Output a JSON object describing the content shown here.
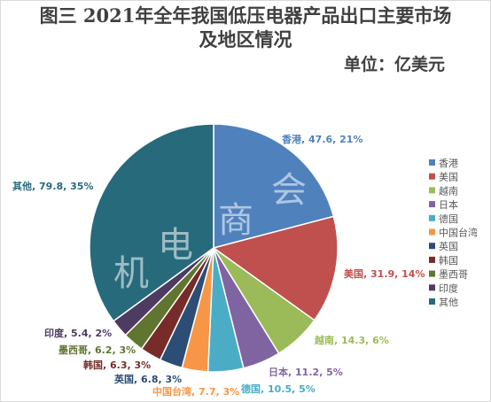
{
  "title_line1": "图三 2021年全年我国低压电器产品出口主要市场",
  "title_line2": "及地区情况",
  "unit": "单位：亿美元",
  "watermark": [
    "机",
    "电",
    "商",
    "会"
  ],
  "chart_data": {
    "type": "pie",
    "categories": [
      "香港",
      "美国",
      "越南",
      "日本",
      "德国",
      "中国台湾",
      "英国",
      "韩国",
      "墨西哥",
      "印度",
      "其他"
    ],
    "values": [
      47.6,
      31.9,
      14.3,
      11.2,
      10.5,
      7.7,
      6.8,
      6.3,
      6.2,
      5.4,
      79.8
    ],
    "percents": [
      "21%",
      "14%",
      "6%",
      "5%",
      "5%",
      "3%",
      "3%",
      "3%",
      "3%",
      "2%",
      "35%"
    ],
    "data_labels": [
      "香港, 47.6, 21%",
      "美国, 31.9, 14%",
      "越南, 14.3, 6%",
      "日本, 11.2, 5%",
      "德国, 10.5, 5%",
      "中国台湾, 7.7, 3%",
      "英国, 6.8, 3%",
      "韩国, 6.3, 3%",
      "墨西哥, 6.2, 3%",
      "印度, 5.4, 2%",
      "其他, 79.8, 35%"
    ],
    "colors": [
      "#4f81bd",
      "#c0504d",
      "#9bbb59",
      "#8064a2",
      "#4bacc6",
      "#f79646",
      "#2c4d75",
      "#772c2a",
      "#5f7530",
      "#4d3b62",
      "#276a7c"
    ],
    "legend": "right"
  }
}
